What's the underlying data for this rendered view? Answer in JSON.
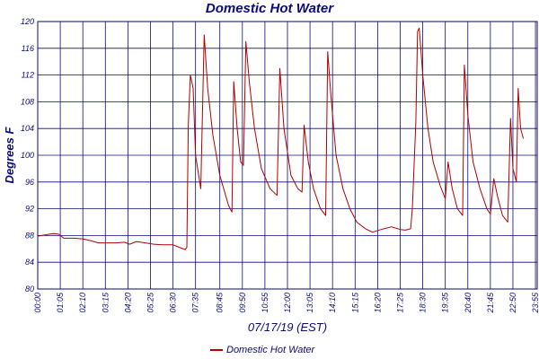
{
  "chart_data": {
    "type": "line",
    "title": "Domestic Hot Water",
    "xlabel": "07/17/19 (EST)",
    "ylabel": "Degrees F",
    "ylim": [
      80,
      120
    ],
    "yticks": [
      80,
      84,
      88,
      92,
      96,
      100,
      104,
      108,
      112,
      116,
      120
    ],
    "xticks": [
      "00:00",
      "01:05",
      "02:10",
      "03:15",
      "04:20",
      "05:25",
      "06:30",
      "07:35",
      "08:45",
      "09:50",
      "10:55",
      "12:00",
      "13:05",
      "14:10",
      "15:15",
      "16:20",
      "17:25",
      "18:30",
      "19:35",
      "20:40",
      "21:45",
      "22:50",
      "23:55"
    ],
    "grid": true,
    "legend": "bottom",
    "colors": {
      "series": "#b00000",
      "grid": "#0b0b7a",
      "text": "#0b0b7a"
    },
    "series": [
      {
        "name": "Domestic Hot Water",
        "points": [
          [
            "00:00",
            87.9
          ],
          [
            "00:20",
            88.1
          ],
          [
            "00:45",
            88.3
          ],
          [
            "01:00",
            88.2
          ],
          [
            "01:15",
            87.6
          ],
          [
            "01:45",
            87.6
          ],
          [
            "02:10",
            87.5
          ],
          [
            "02:35",
            87.2
          ],
          [
            "02:55",
            86.9
          ],
          [
            "03:20",
            86.9
          ],
          [
            "03:45",
            86.9
          ],
          [
            "04:10",
            87.0
          ],
          [
            "04:25",
            86.7
          ],
          [
            "04:45",
            87.1
          ],
          [
            "05:10",
            86.9
          ],
          [
            "05:35",
            86.7
          ],
          [
            "06:00",
            86.6
          ],
          [
            "06:30",
            86.6
          ],
          [
            "06:55",
            86.1
          ],
          [
            "07:05",
            85.9
          ],
          [
            "07:10",
            86.2
          ],
          [
            "07:14",
            104.5
          ],
          [
            "07:20",
            112.0
          ],
          [
            "07:28",
            110.0
          ],
          [
            "07:35",
            100.0
          ],
          [
            "07:50",
            95.0
          ],
          [
            "08:00",
            118.0
          ],
          [
            "08:10",
            110.0
          ],
          [
            "08:25",
            103.0
          ],
          [
            "08:45",
            97.0
          ],
          [
            "09:10",
            92.5
          ],
          [
            "09:20",
            91.5
          ],
          [
            "09:25",
            111.0
          ],
          [
            "09:35",
            104.0
          ],
          [
            "09:45",
            99.0
          ],
          [
            "09:53",
            98.5
          ],
          [
            "10:00",
            117.0
          ],
          [
            "10:10",
            111.0
          ],
          [
            "10:25",
            104.0
          ],
          [
            "10:45",
            98.0
          ],
          [
            "11:10",
            95.0
          ],
          [
            "11:30",
            94.0
          ],
          [
            "11:38",
            113.0
          ],
          [
            "11:50",
            104.0
          ],
          [
            "12:10",
            97.0
          ],
          [
            "12:30",
            95.0
          ],
          [
            "12:42",
            94.5
          ],
          [
            "12:48",
            104.5
          ],
          [
            "13:00",
            99.0
          ],
          [
            "13:15",
            95.0
          ],
          [
            "13:35",
            92.0
          ],
          [
            "13:50",
            91.0
          ],
          [
            "13:56",
            115.5
          ],
          [
            "14:05",
            109.0
          ],
          [
            "14:20",
            100.0
          ],
          [
            "14:40",
            95.0
          ],
          [
            "15:00",
            92.0
          ],
          [
            "15:20",
            90.0
          ],
          [
            "15:45",
            89.0
          ],
          [
            "16:05",
            88.5
          ],
          [
            "16:30",
            88.9
          ],
          [
            "17:00",
            89.3
          ],
          [
            "17:25",
            88.9
          ],
          [
            "17:40",
            88.8
          ],
          [
            "17:55",
            89.0
          ],
          [
            "18:00",
            92.0
          ],
          [
            "18:10",
            105.0
          ],
          [
            "18:15",
            118.5
          ],
          [
            "18:20",
            119.0
          ],
          [
            "18:30",
            112.0
          ],
          [
            "18:45",
            104.0
          ],
          [
            "19:00",
            99.0
          ],
          [
            "19:20",
            95.5
          ],
          [
            "19:35",
            93.5
          ],
          [
            "19:43",
            99.0
          ],
          [
            "19:55",
            95.0
          ],
          [
            "20:10",
            92.0
          ],
          [
            "20:25",
            91.0
          ],
          [
            "20:30",
            113.5
          ],
          [
            "20:40",
            106.0
          ],
          [
            "20:55",
            99.0
          ],
          [
            "21:15",
            95.0
          ],
          [
            "21:35",
            92.0
          ],
          [
            "21:45",
            91.2
          ],
          [
            "21:55",
            96.5
          ],
          [
            "22:05",
            94.0
          ],
          [
            "22:20",
            91.0
          ],
          [
            "22:35",
            90.0
          ],
          [
            "22:43",
            105.5
          ],
          [
            "22:50",
            98.0
          ],
          [
            "23:00",
            96.0
          ],
          [
            "23:05",
            110.0
          ],
          [
            "23:12",
            104.0
          ],
          [
            "23:20",
            102.5
          ]
        ]
      }
    ]
  }
}
